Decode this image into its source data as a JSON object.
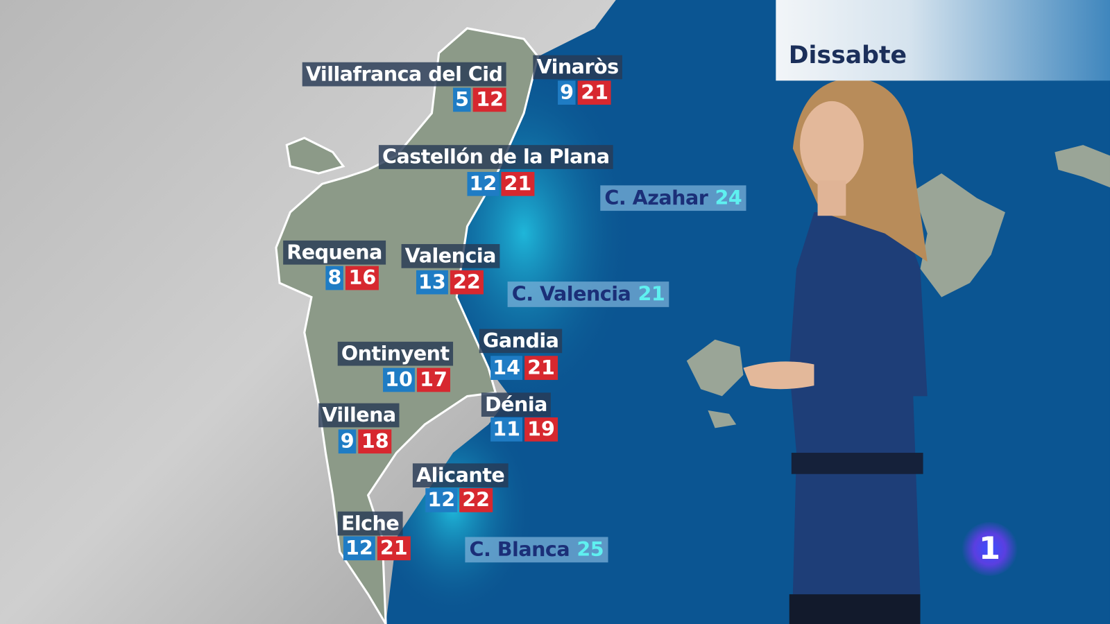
{
  "day_label": "Dissabte",
  "channel_logo": "1",
  "colors": {
    "min_temp": "#1f7cc4",
    "max_temp": "#d7282f",
    "sea_temp": "#5ff0f0",
    "sea": "#0a4f8a"
  },
  "cities": [
    {
      "name": "Villafranca del Cid",
      "min": "5",
      "max": "12"
    },
    {
      "name": "Vinaròs",
      "min": "9",
      "max": "21"
    },
    {
      "name": "Castellón de la Plana",
      "min": "12",
      "max": "21"
    },
    {
      "name": "Requena",
      "min": "8",
      "max": "16"
    },
    {
      "name": "Valencia",
      "min": "13",
      "max": "22"
    },
    {
      "name": "Gandia",
      "min": "14",
      "max": "21"
    },
    {
      "name": "Ontinyent",
      "min": "10",
      "max": "17"
    },
    {
      "name": "Dénia",
      "min": "11",
      "max": "19"
    },
    {
      "name": "Villena",
      "min": "9",
      "max": "18"
    },
    {
      "name": "Alicante",
      "min": "12",
      "max": "22"
    },
    {
      "name": "Elche",
      "min": "12",
      "max": "21"
    }
  ],
  "sea_zones": [
    {
      "name": "C. Azahar",
      "temp": "24"
    },
    {
      "name": "C. Valencia",
      "temp": "21"
    },
    {
      "name": "C. Blanca",
      "temp": "25"
    }
  ]
}
